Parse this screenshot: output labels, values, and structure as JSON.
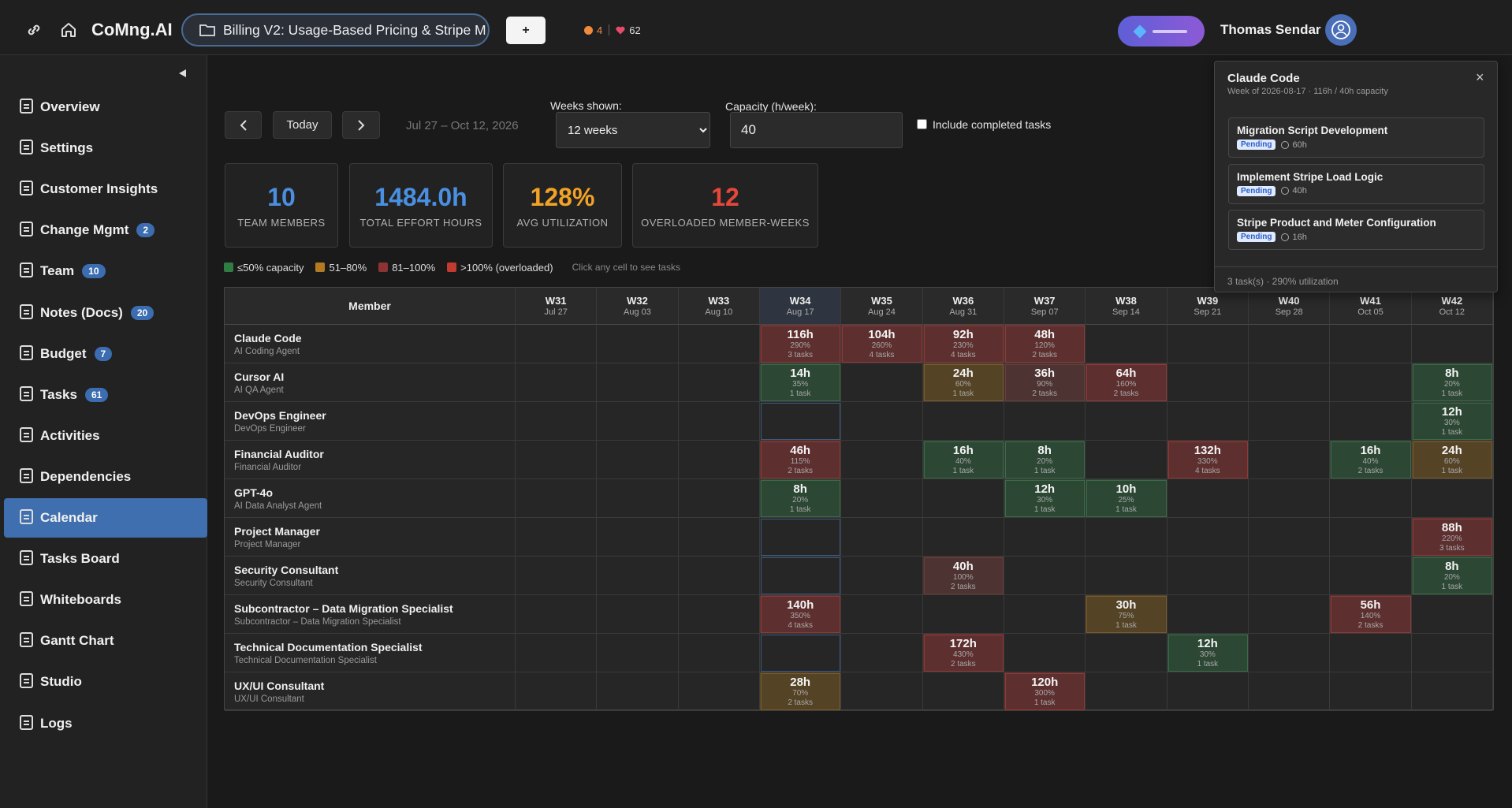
{
  "header": {
    "app_name": "CoMng.AI",
    "project": "Billing V2: Usage-Based Pricing & Stripe M",
    "add_button": "+",
    "alerts": "4",
    "likes": "62",
    "user": "Thomas Sendar"
  },
  "sidebar": {
    "items": [
      {
        "label": "Overview"
      },
      {
        "label": "Settings"
      },
      {
        "label": "Customer Insights"
      },
      {
        "label": "Change Mgmt",
        "badge": "2"
      },
      {
        "label": "Team",
        "badge": "10"
      },
      {
        "label": "Notes (Docs)",
        "badge": "20"
      },
      {
        "label": "Budget",
        "badge": "7"
      },
      {
        "label": "Tasks",
        "badge": "61"
      },
      {
        "label": "Activities"
      },
      {
        "label": "Dependencies"
      },
      {
        "label": "Calendar",
        "active": true
      },
      {
        "label": "Tasks Board"
      },
      {
        "label": "Whiteboards"
      },
      {
        "label": "Gantt Chart"
      },
      {
        "label": "Studio"
      },
      {
        "label": "Logs"
      }
    ]
  },
  "toolbar": {
    "today": "Today",
    "date_range": "Jul 27 – Oct 12, 2026",
    "weeks_label": "Weeks shown:",
    "weeks_value": "12 weeks",
    "capacity_label": "Capacity (h/week):",
    "capacity_value": "40",
    "checkbox_label": "Include completed tasks"
  },
  "stats": [
    {
      "value": "10",
      "label": "TEAM MEMBERS",
      "color": "#4a8fe0"
    },
    {
      "value": "1484.0h",
      "label": "TOTAL EFFORT HOURS",
      "color": "#4a8fe0"
    },
    {
      "value": "128%",
      "label": "AVG UTILIZATION",
      "color": "#f2a227"
    },
    {
      "value": "12",
      "label": "OVERLOADED MEMBER-WEEKS",
      "color": "#e5483b"
    }
  ],
  "legend": {
    "items": [
      {
        "label": "≤50% capacity",
        "color": "#2f7d43",
        "fill": "#2c4734",
        "border": "#3d6a49"
      },
      {
        "label": "51–80%",
        "color": "#b27a22",
        "fill": "#554326",
        "border": "#7a5c2d"
      },
      {
        "label": "81–100%",
        "color": "#8e3333",
        "fill": "#4d3331",
        "border": "#6a3c3a"
      },
      {
        "label": ">100% (overloaded)",
        "color": "#c23b30",
        "fill": "#5e2f2f",
        "border": "#8e3a38"
      }
    ],
    "hint": "Click any cell to see tasks"
  },
  "table": {
    "member_header": "Member",
    "weeks": [
      {
        "week": "W31",
        "date": "Jul 27"
      },
      {
        "week": "W32",
        "date": "Aug 03"
      },
      {
        "week": "W33",
        "date": "Aug 10"
      },
      {
        "week": "W34",
        "date": "Aug 17",
        "current": true
      },
      {
        "week": "W35",
        "date": "Aug 24"
      },
      {
        "week": "W36",
        "date": "Aug 31"
      },
      {
        "week": "W37",
        "date": "Sep 07"
      },
      {
        "week": "W38",
        "date": "Sep 14"
      },
      {
        "week": "W39",
        "date": "Sep 21"
      },
      {
        "week": "W40",
        "date": "Sep 28"
      },
      {
        "week": "W41",
        "date": "Oct 05"
      },
      {
        "week": "W42",
        "date": "Oct 12"
      }
    ],
    "rows": [
      {
        "name": "Claude Code",
        "role": "AI Coding Agent",
        "cells": [
          null,
          null,
          null,
          {
            "hours": "116h",
            "pct": "290%",
            "tasks": "3 tasks",
            "level": 3
          },
          {
            "hours": "104h",
            "pct": "260%",
            "tasks": "4 tasks",
            "level": 3
          },
          {
            "hours": "92h",
            "pct": "230%",
            "tasks": "4 tasks",
            "level": 3
          },
          {
            "hours": "48h",
            "pct": "120%",
            "tasks": "2 tasks",
            "level": 3
          },
          null,
          null,
          null,
          null,
          null
        ]
      },
      {
        "name": "Cursor AI",
        "role": "AI QA Agent",
        "cells": [
          null,
          null,
          null,
          {
            "hours": "14h",
            "pct": "35%",
            "tasks": "1 task",
            "level": 0
          },
          null,
          {
            "hours": "24h",
            "pct": "60%",
            "tasks": "1 task",
            "level": 1
          },
          {
            "hours": "36h",
            "pct": "90%",
            "tasks": "2 tasks",
            "level": 2
          },
          {
            "hours": "64h",
            "pct": "160%",
            "tasks": "2 tasks",
            "level": 3
          },
          null,
          null,
          null,
          {
            "hours": "8h",
            "pct": "20%",
            "tasks": "1 task",
            "level": 0
          }
        ]
      },
      {
        "name": "DevOps Engineer",
        "role": "DevOps Engineer",
        "cells": [
          null,
          null,
          null,
          null,
          null,
          null,
          null,
          null,
          null,
          null,
          null,
          {
            "hours": "12h",
            "pct": "30%",
            "tasks": "1 task",
            "level": 0
          }
        ]
      },
      {
        "name": "Financial Auditor",
        "role": "Financial Auditor",
        "cells": [
          null,
          null,
          null,
          {
            "hours": "46h",
            "pct": "115%",
            "tasks": "2 tasks",
            "level": 3
          },
          null,
          {
            "hours": "16h",
            "pct": "40%",
            "tasks": "1 task",
            "level": 0
          },
          {
            "hours": "8h",
            "pct": "20%",
            "tasks": "1 task",
            "level": 0
          },
          null,
          {
            "hours": "132h",
            "pct": "330%",
            "tasks": "4 tasks",
            "level": 3
          },
          null,
          {
            "hours": "16h",
            "pct": "40%",
            "tasks": "2 tasks",
            "level": 0
          },
          {
            "hours": "24h",
            "pct": "60%",
            "tasks": "1 task",
            "level": 1
          }
        ]
      },
      {
        "name": "GPT-4o",
        "role": "AI Data Analyst Agent",
        "cells": [
          null,
          null,
          null,
          {
            "hours": "8h",
            "pct": "20%",
            "tasks": "1 task",
            "level": 0
          },
          null,
          null,
          {
            "hours": "12h",
            "pct": "30%",
            "tasks": "1 task",
            "level": 0
          },
          {
            "hours": "10h",
            "pct": "25%",
            "tasks": "1 task",
            "level": 0
          },
          null,
          null,
          null,
          null
        ]
      },
      {
        "name": "Project Manager",
        "role": "Project Manager",
        "cells": [
          null,
          null,
          null,
          null,
          null,
          null,
          null,
          null,
          null,
          null,
          null,
          {
            "hours": "88h",
            "pct": "220%",
            "tasks": "3 tasks",
            "level": 3
          }
        ]
      },
      {
        "name": "Security Consultant",
        "role": "Security Consultant",
        "cells": [
          null,
          null,
          null,
          null,
          null,
          {
            "hours": "40h",
            "pct": "100%",
            "tasks": "2 tasks",
            "level": 2
          },
          null,
          null,
          null,
          null,
          null,
          {
            "hours": "8h",
            "pct": "20%",
            "tasks": "1 task",
            "level": 0
          }
        ]
      },
      {
        "name": "Subcontractor – Data Migration Specialist",
        "role": "Subcontractor – Data Migration Specialist",
        "cells": [
          null,
          null,
          null,
          {
            "hours": "140h",
            "pct": "350%",
            "tasks": "4 tasks",
            "level": 3
          },
          null,
          null,
          null,
          {
            "hours": "30h",
            "pct": "75%",
            "tasks": "1 task",
            "level": 1
          },
          null,
          null,
          {
            "hours": "56h",
            "pct": "140%",
            "tasks": "2 tasks",
            "level": 3
          },
          null
        ]
      },
      {
        "name": "Technical Documentation Specialist",
        "role": "Technical Documentation Specialist",
        "cells": [
          null,
          null,
          null,
          null,
          null,
          {
            "hours": "172h",
            "pct": "430%",
            "tasks": "2 tasks",
            "level": 3
          },
          null,
          null,
          {
            "hours": "12h",
            "pct": "30%",
            "tasks": "1 task",
            "level": 0
          },
          null,
          null,
          null
        ]
      },
      {
        "name": "UX/UI Consultant",
        "role": "UX/UI Consultant",
        "cells": [
          null,
          null,
          null,
          {
            "hours": "28h",
            "pct": "70%",
            "tasks": "2 tasks",
            "level": 1
          },
          null,
          null,
          {
            "hours": "120h",
            "pct": "300%",
            "tasks": "1 task",
            "level": 3
          },
          null,
          null,
          null,
          null,
          null
        ]
      }
    ]
  },
  "popover": {
    "title": "Claude Code",
    "subtitle": "Week of 2026-08-17 · 116h / 40h capacity",
    "close": "×",
    "tasks": [
      {
        "name": "Migration Script Development",
        "status": "Pending",
        "hours": "60h"
      },
      {
        "name": "Implement Stripe Load Logic",
        "status": "Pending",
        "hours": "40h"
      },
      {
        "name": "Stripe Product and Meter Configuration",
        "status": "Pending",
        "hours": "16h"
      }
    ],
    "footer": "3 task(s) · 290% utilization"
  }
}
